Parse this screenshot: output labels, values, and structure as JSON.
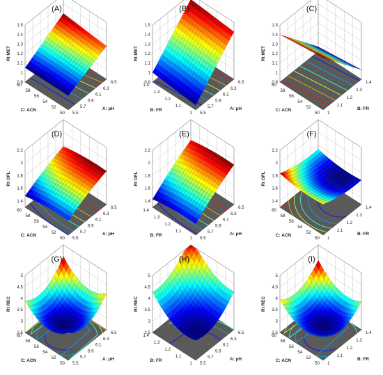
{
  "chart_data": [
    {
      "id": "A",
      "label": "(A)",
      "type": "surface3d",
      "zlabel": "Rt MET",
      "zticks": [
        "0.9",
        "1",
        "1.1",
        "1.2",
        "1.3",
        "1.4",
        "1.5"
      ],
      "zlim": [
        0.9,
        1.5
      ],
      "left_axis": {
        "label": "C: ACN",
        "ticks": [
          "50",
          "52",
          "54",
          "56",
          "58",
          "60"
        ]
      },
      "right_axis": {
        "label": "A: pH",
        "ticks": [
          "5.5",
          "5.7",
          "5.9",
          "6.1",
          "6.3",
          "6.5"
        ]
      },
      "surface": {
        "corners": [
          1.05,
          1.25,
          1.05,
          1.3
        ],
        "curvature": 0.0
      }
    },
    {
      "id": "B",
      "label": "(B)",
      "type": "surface3d",
      "zlabel": "Rt MET",
      "zticks": [
        "0.9",
        "1",
        "1.1",
        "1.2",
        "1.3",
        "1.4",
        "1.5"
      ],
      "zlim": [
        0.9,
        1.5
      ],
      "left_axis": {
        "label": "B: FR",
        "ticks": [
          "1",
          "1.1",
          "1.2",
          "1.3",
          "1.4"
        ]
      },
      "right_axis": {
        "label": "A: pH",
        "ticks": [
          "5.5",
          "5.7",
          "5.9",
          "6.1",
          "6.3",
          "6.5"
        ]
      },
      "surface": {
        "corners": [
          0.95,
          1.4,
          1.0,
          1.45
        ],
        "curvature": 0.0
      }
    },
    {
      "id": "C",
      "label": "(C)",
      "type": "surface3d",
      "zlabel": "Rt MET",
      "zticks": [
        "0.9",
        "1",
        "1.1",
        "1.2",
        "1.3",
        "1.4",
        "1.5"
      ],
      "zlim": [
        0.9,
        1.5
      ],
      "left_axis": {
        "label": "C: ACN",
        "ticks": [
          "50",
          "52",
          "54",
          "56",
          "58",
          "60"
        ]
      },
      "right_axis": {
        "label": "B: FR",
        "ticks": [
          "1",
          "1.1",
          "1.2",
          "1.3",
          "1.4"
        ]
      },
      "surface": {
        "corners": [
          1.45,
          1.0,
          1.4,
          0.95
        ],
        "curvature": 0.0
      }
    },
    {
      "id": "D",
      "label": "(D)",
      "type": "surface3d",
      "zlabel": "Rt OFL",
      "zticks": [
        "1.4",
        "1.6",
        "1.8",
        "2",
        "2.2"
      ],
      "zlim": [
        1.3,
        2.2
      ],
      "left_axis": {
        "label": "C: ACN",
        "ticks": [
          "50",
          "52",
          "54",
          "56",
          "58",
          "60"
        ]
      },
      "right_axis": {
        "label": "A: pH",
        "ticks": [
          "5.5",
          "5.7",
          "5.9",
          "6.1",
          "6.3",
          "6.5"
        ]
      },
      "surface": {
        "corners": [
          1.55,
          1.85,
          1.5,
          1.8
        ],
        "curvature": -0.05
      }
    },
    {
      "id": "E",
      "label": "(E)",
      "type": "surface3d",
      "zlabel": "Rt OFL",
      "zticks": [
        "1.4",
        "1.6",
        "1.8",
        "2",
        "2.2"
      ],
      "zlim": [
        1.3,
        2.2
      ],
      "left_axis": {
        "label": "B: FR",
        "ticks": [
          "1",
          "1.1",
          "1.2",
          "1.3",
          "1.4"
        ]
      },
      "right_axis": {
        "label": "A: pH",
        "ticks": [
          "5.5",
          "5.7",
          "5.9",
          "6.1",
          "6.3",
          "6.5"
        ]
      },
      "surface": {
        "corners": [
          1.5,
          1.95,
          1.45,
          1.9
        ],
        "curvature": -0.05
      }
    },
    {
      "id": "F",
      "label": "(F)",
      "type": "surface3d",
      "zlabel": "Rt OFL",
      "zticks": [
        "1.4",
        "1.6",
        "1.8",
        "2",
        "2.2"
      ],
      "zlim": [
        1.3,
        2.2
      ],
      "left_axis": {
        "label": "C: ACN",
        "ticks": [
          "50",
          "52",
          "54",
          "56",
          "58",
          "60"
        ]
      },
      "right_axis": {
        "label": "B: FR",
        "ticks": [
          "1",
          "1.1",
          "1.2",
          "1.3",
          "1.4"
        ]
      },
      "surface": {
        "corners": [
          1.75,
          1.65,
          1.8,
          1.7
        ],
        "curvature": 0.08
      }
    },
    {
      "id": "G",
      "label": "(G)",
      "type": "surface3d",
      "zlabel": "Rt REC",
      "zticks": [
        "2.5",
        "3",
        "3.5",
        "4",
        "4.5",
        "5"
      ],
      "zlim": [
        2.5,
        5.0
      ],
      "left_axis": {
        "label": "C: ACN",
        "ticks": [
          "50",
          "52",
          "54",
          "56",
          "58",
          "60"
        ]
      },
      "right_axis": {
        "label": "A: pH",
        "ticks": [
          "5.5",
          "5.7",
          "5.9",
          "6.1",
          "6.3",
          "6.5"
        ]
      },
      "surface": {
        "corners": [
          3.2,
          3.6,
          3.4,
          4.0
        ],
        "curvature": 0.4
      }
    },
    {
      "id": "H",
      "label": "(H)",
      "type": "surface3d",
      "zlabel": "Rt REC",
      "zticks": [
        "2.5",
        "3",
        "3.5",
        "4",
        "4.5",
        "5"
      ],
      "zlim": [
        2.5,
        5.0
      ],
      "left_axis": {
        "label": "B: FR",
        "ticks": [
          "1",
          "1.1",
          "1.2",
          "1.3",
          "1.4"
        ]
      },
      "right_axis": {
        "label": "A: pH",
        "ticks": [
          "5.5",
          "5.7",
          "5.9",
          "6.1",
          "6.3",
          "6.5"
        ]
      },
      "surface": {
        "corners": [
          3.0,
          3.8,
          3.9,
          5.0
        ],
        "curvature": 0.3
      }
    },
    {
      "id": "I",
      "label": "(I)",
      "type": "surface3d",
      "zlabel": "Rt REC",
      "zticks": [
        "2.5",
        "3",
        "3.5",
        "4",
        "4.5",
        "5"
      ],
      "zlim": [
        2.5,
        5.0
      ],
      "left_axis": {
        "label": "C: ACN",
        "ticks": [
          "50",
          "52",
          "54",
          "56",
          "58",
          "60"
        ]
      },
      "right_axis": {
        "label": "B: FR",
        "ticks": [
          "1",
          "1.1",
          "1.2",
          "1.3",
          "1.4"
        ]
      },
      "surface": {
        "corners": [
          3.1,
          3.3,
          3.5,
          3.9
        ],
        "curvature": 0.35
      }
    }
  ]
}
